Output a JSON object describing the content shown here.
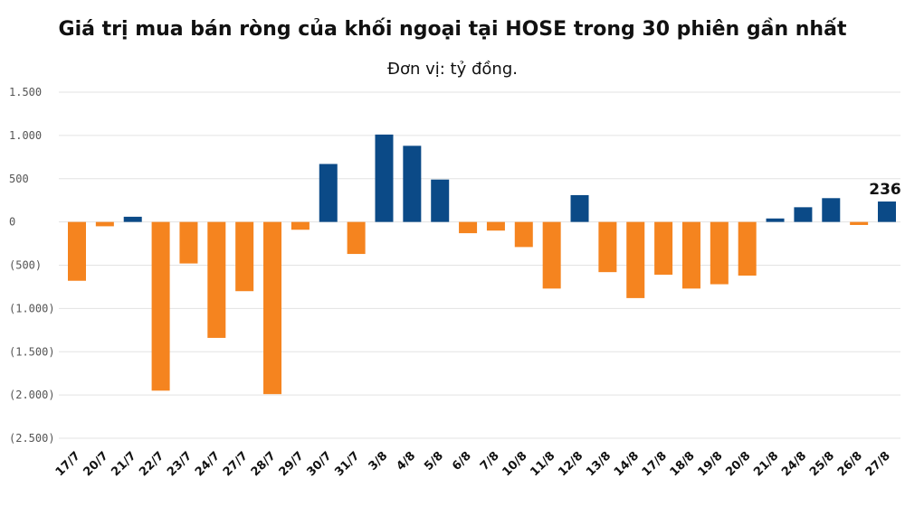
{
  "title": "Giá trị mua bán ròng của khối ngoại tại HOSE trong 30 phiên gần nhất",
  "subtitle": "Đơn vị: tỷ đồng.",
  "colors": {
    "positive": "#0b4a87",
    "negative": "#f5841f",
    "grid": "#e3e3e3"
  },
  "chart_data": {
    "type": "bar",
    "title": "Giá trị mua bán ròng của khối ngoại tại HOSE trong 30 phiên gần nhất",
    "subtitle": "Đơn vị: tỷ đồng.",
    "xlabel": "",
    "ylabel": "",
    "ylim": [
      -2500,
      1500
    ],
    "yticks": [
      1500,
      1000,
      500,
      0,
      -500,
      -1000,
      -1500,
      -2000,
      -2500
    ],
    "ytick_labels": [
      "1.500",
      "1.000",
      "500",
      "0",
      "(500)",
      "(1.000)",
      "(1.500)",
      "(2.000)",
      "(2.500)"
    ],
    "grid": true,
    "categories": [
      "17/7",
      "20/7",
      "21/7",
      "22/7",
      "23/7",
      "24/7",
      "27/7",
      "28/7",
      "29/7",
      "30/7",
      "31/7",
      "3/8",
      "4/8",
      "5/8",
      "6/8",
      "7/8",
      "10/8",
      "11/8",
      "12/8",
      "13/8",
      "14/8",
      "17/8",
      "18/8",
      "19/8",
      "20/8",
      "21/8",
      "24/8",
      "25/8",
      "26/8",
      "27/8"
    ],
    "values": [
      -680,
      -50,
      60,
      -1950,
      -480,
      -1340,
      -800,
      -1990,
      -90,
      670,
      -370,
      1010,
      880,
      490,
      -130,
      -100,
      -290,
      -770,
      310,
      -580,
      -880,
      -610,
      -770,
      -720,
      -620,
      40,
      170,
      275,
      -35,
      236
    ],
    "data_labels": [
      {
        "category": "27/8",
        "text": "236"
      }
    ]
  }
}
